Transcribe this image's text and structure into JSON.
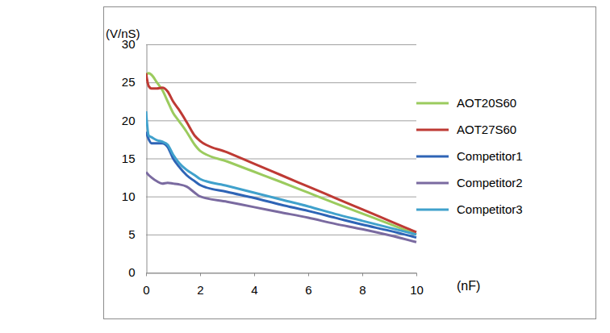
{
  "chart_data": {
    "type": "line",
    "x_label": "(nF)",
    "y_label": "(V/nS)",
    "x": [
      0,
      0.1,
      0.2,
      0.4,
      0.6,
      0.8,
      1,
      1.2,
      1.5,
      1.8,
      2,
      3,
      4,
      5,
      6,
      7,
      8,
      9,
      10
    ],
    "series": [
      {
        "name": "AOT20S60",
        "color": "#9bcb5e",
        "values": [
          26,
          26.2,
          26,
          25,
          24,
          22.5,
          21,
          20,
          18.5,
          16.8,
          16,
          14.6,
          13.25,
          11.9,
          10.5,
          9.1,
          7.75,
          6.4,
          5
        ]
      },
      {
        "name": "AOT27S60",
        "color": "#be3a34",
        "values": [
          26.2,
          24.5,
          24.2,
          24.2,
          24.3,
          23.8,
          22.5,
          21.5,
          19.8,
          18,
          17.3,
          15.8,
          14.3,
          12.8,
          11.3,
          9.8,
          8.3,
          6.8,
          5.3
        ]
      },
      {
        "name": "Competitor1",
        "color": "#2e64b6",
        "values": [
          18.5,
          17.5,
          17,
          17,
          17,
          16.5,
          15,
          14,
          12.8,
          12,
          11.5,
          10.6,
          9.8,
          8.9,
          8.1,
          7.2,
          6.3,
          5.5,
          4.6
        ]
      },
      {
        "name": "Competitor2",
        "color": "#7a6aa0",
        "values": [
          13.2,
          12.8,
          12.5,
          12,
          11.7,
          11.8,
          11.7,
          11.6,
          11.3,
          10.5,
          10,
          9.3,
          8.6,
          7.9,
          7.2,
          6.4,
          5.7,
          4.9,
          4
        ]
      },
      {
        "name": "Competitor3",
        "color": "#40a1cc",
        "values": [
          21.2,
          18,
          17.8,
          17.4,
          17.2,
          16.8,
          15.5,
          14.5,
          13.5,
          12.8,
          12.3,
          11.4,
          10.5,
          9.6,
          8.7,
          7.7,
          6.8,
          5.9,
          5
        ]
      }
    ],
    "xlim": [
      0,
      10
    ],
    "xticks": [
      0,
      2,
      4,
      6,
      8,
      10
    ],
    "ylim": [
      0,
      30
    ],
    "yticks": [
      0,
      5,
      10,
      15,
      20,
      25,
      30
    ],
    "grid": true,
    "legend": "right"
  }
}
